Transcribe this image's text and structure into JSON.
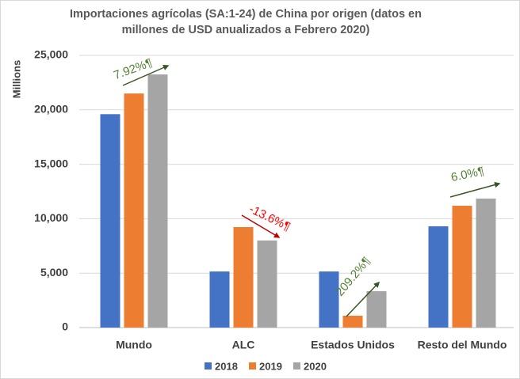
{
  "chart_data": {
    "type": "bar",
    "title": "Importaciones agrícolas (SA:1-24) de China por origen (datos en millones de USD anualizados a Febrero 2020)",
    "y_label": "Millions",
    "categories": [
      "Mundo",
      "ALC",
      "Estados Unidos",
      "Resto del Mundo"
    ],
    "series": [
      {
        "name": "2018",
        "color": "#4472c4",
        "values": [
          19600,
          5150,
          5150,
          9300
        ]
      },
      {
        "name": "2019",
        "color": "#ed7d31",
        "values": [
          21500,
          9230,
          1090,
          11190
        ]
      },
      {
        "name": "2020",
        "color": "#a5a5a5",
        "values": [
          23250,
          8000,
          3340,
          11850
        ]
      }
    ],
    "ylim": [
      0,
      25000
    ],
    "yticks": [
      {
        "value": 0,
        "label": "0"
      },
      {
        "value": 5000,
        "label": "5,000"
      },
      {
        "value": 10000,
        "label": "10,000"
      },
      {
        "value": 15000,
        "label": "15,000"
      },
      {
        "value": 20000,
        "label": "20,000"
      },
      {
        "value": 25000,
        "label": "25,000"
      }
    ],
    "grid": true,
    "legend": "bottom",
    "annotations": [
      {
        "text": "7.92%¶",
        "color": "#548235"
      },
      {
        "text": "-13.6%¶",
        "color": "#ff0000"
      },
      {
        "text": "209.2%¶",
        "color": "#548235"
      },
      {
        "text": "6.0%¶",
        "color": "#548235"
      }
    ]
  }
}
